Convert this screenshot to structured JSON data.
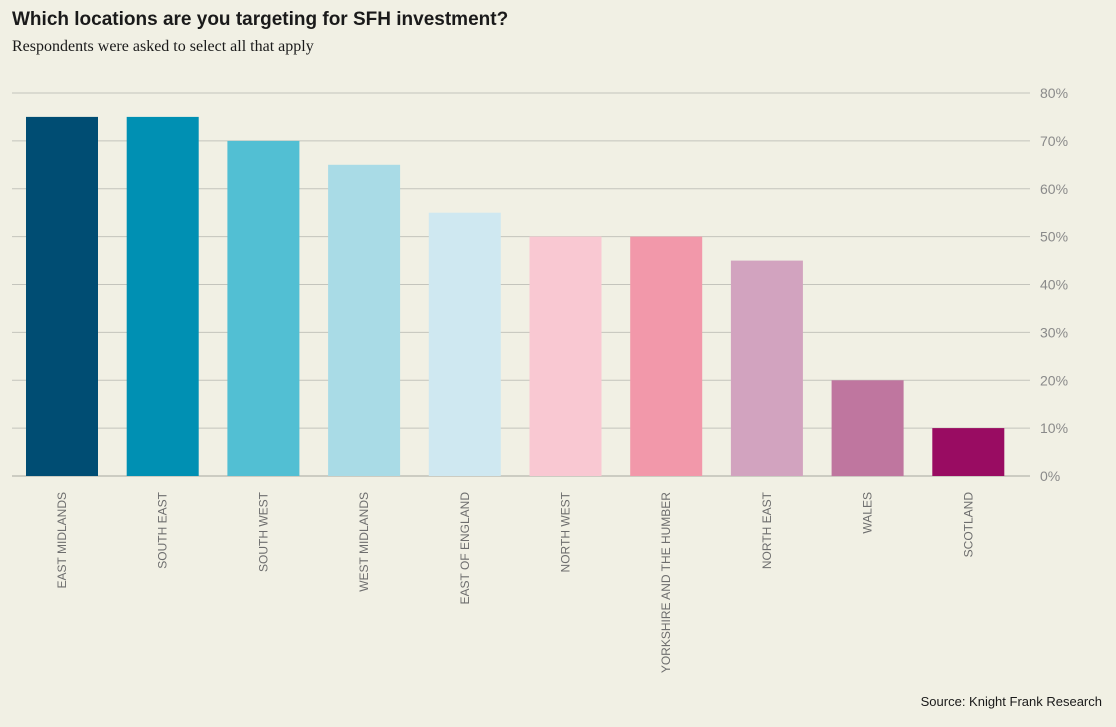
{
  "title": "Which locations are you targeting for SFH investment?",
  "subtitle": "Respondents were asked to select all that apply",
  "source": "Source: Knight Frank Research",
  "chart_data": {
    "type": "bar",
    "title": "Which locations are you targeting for SFH investment?",
    "subtitle": "Respondents were asked to select all that apply",
    "xlabel": "",
    "ylabel": "",
    "ylim": [
      0,
      80
    ],
    "yticks": [
      0,
      10,
      20,
      30,
      40,
      50,
      60,
      70,
      80
    ],
    "ytick_labels": [
      "0%",
      "10%",
      "20%",
      "30%",
      "40%",
      "50%",
      "60%",
      "70%",
      "80%"
    ],
    "y_axis_side": "right",
    "grid": true,
    "categories": [
      "EAST MIDLANDS",
      "SOUTH EAST",
      "SOUTH WEST",
      "WEST MIDLANDS",
      "EAST OF ENGLAND",
      "NORTH WEST",
      "YORKSHIRE AND THE HUMBER",
      "NORTH EAST",
      "WALES",
      "SCOTLAND"
    ],
    "values": [
      75,
      75,
      70,
      65,
      55,
      50,
      50,
      45,
      20,
      10
    ],
    "colors": [
      "#004d73",
      "#0090b3",
      "#52bfd3",
      "#a9dbe6",
      "#cfe8f1",
      "#f9c8d2",
      "#f298aa",
      "#d2a3bf",
      "#bf769f",
      "#990c62"
    ]
  }
}
